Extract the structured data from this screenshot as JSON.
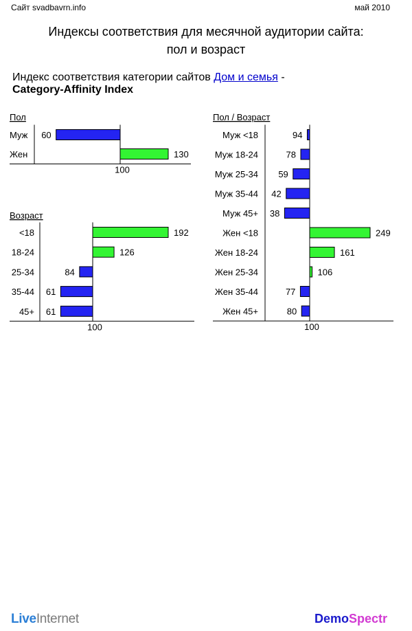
{
  "header": {
    "site": "Сайт svadbavrn.info",
    "date": "май 2010",
    "title_line1": "Индексы соответствия для месячной аудитории сайта:",
    "title_line2": "пол и возраст",
    "subtitle_prefix": "Индекс соответствия категории сайтов ",
    "subtitle_link": "Дом и семья",
    "subtitle_suffix": " -",
    "subtitle_line2": "Category-Affinity Index"
  },
  "colors": {
    "below": "#2424f2",
    "above": "#33f533"
  },
  "chart_data": [
    {
      "type": "bar",
      "orientation": "horizontal",
      "baseline": 100,
      "title": "Пол",
      "baseline_label": "100",
      "categories": [
        "Муж",
        "Жен"
      ],
      "values": [
        60,
        130
      ]
    },
    {
      "type": "bar",
      "orientation": "horizontal",
      "baseline": 100,
      "title": "Возраст",
      "baseline_label": "100",
      "categories": [
        "<18",
        "18-24",
        "25-34",
        "35-44",
        "45+"
      ],
      "values": [
        192,
        126,
        84,
        61,
        61
      ]
    },
    {
      "type": "bar",
      "orientation": "horizontal",
      "baseline": 100,
      "title": "Пол / Возраст",
      "baseline_label": "100",
      "categories": [
        "Муж <18",
        "Муж 18-24",
        "Муж 25-34",
        "Муж 35-44",
        "Муж 45+",
        "Жен <18",
        "Жен 18-24",
        "Жен 25-34",
        "Жен 35-44",
        "Жен 45+"
      ],
      "values": [
        94,
        78,
        59,
        42,
        38,
        249,
        161,
        106,
        77,
        80
      ]
    }
  ],
  "footer": {
    "left_part1": "Live",
    "left_part2": "Internet",
    "right_part1": "Demo",
    "right_part2": "Spectr"
  }
}
